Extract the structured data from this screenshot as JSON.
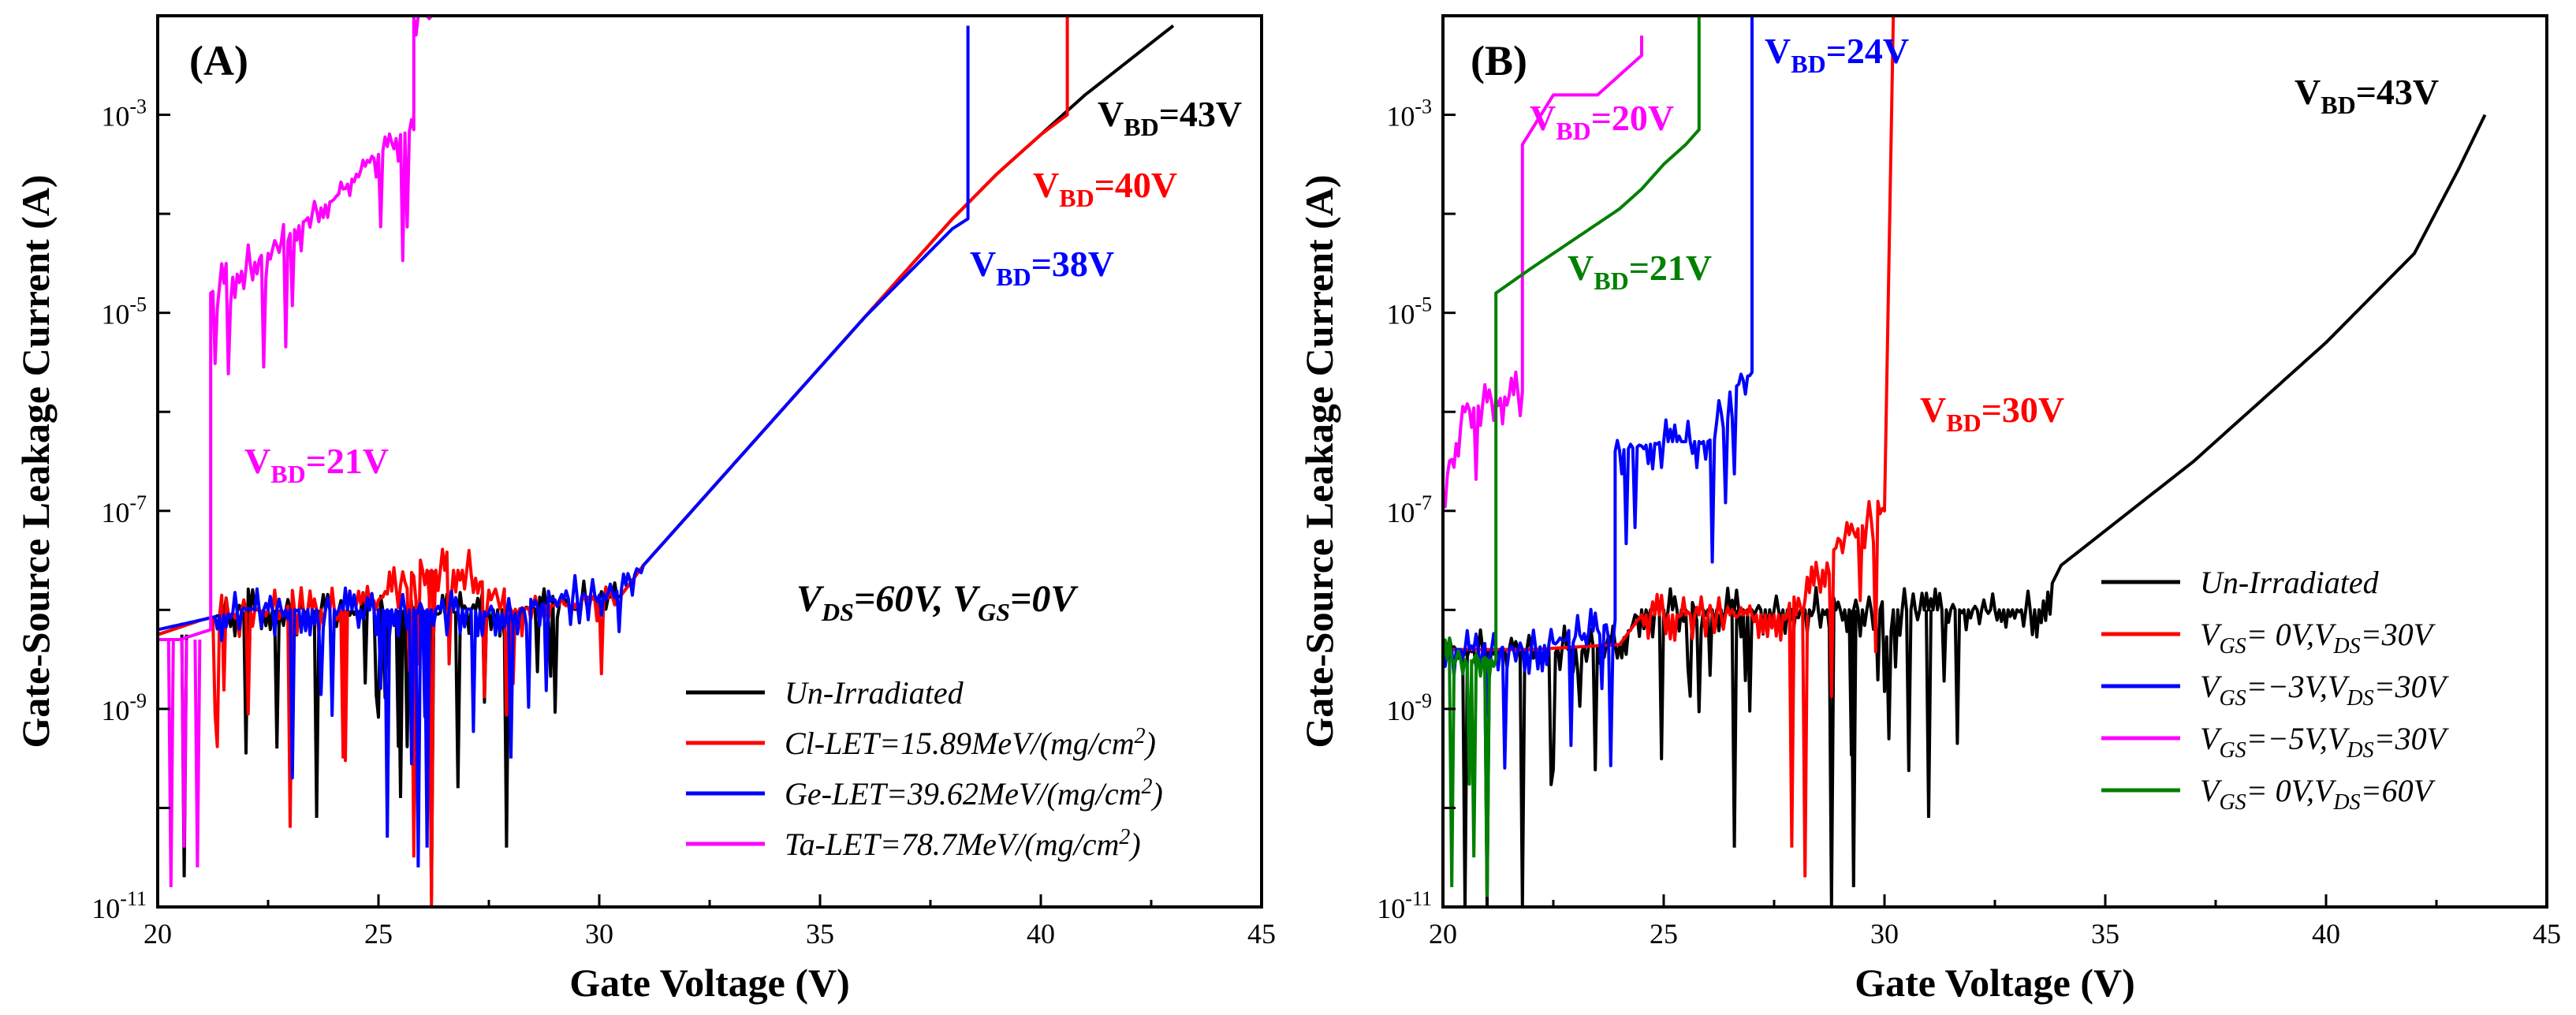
{
  "colors": {
    "black": "#000000",
    "red": "#ff0000",
    "blue": "#0000ff",
    "magenta": "#ff00ff",
    "green": "#008000"
  },
  "chart_data": [
    {
      "type": "line",
      "panel": "(A)",
      "xlabel": "Gate Voltage (V)",
      "ylabel": "Gate-Source Leakage Current (A)",
      "xlim": [
        20,
        45
      ],
      "ylim_log10": [
        -11,
        -2
      ],
      "yscale": "log",
      "xticks": [
        "20",
        "25",
        "30",
        "35",
        "40",
        "45"
      ],
      "yticks": [
        {
          "exp": -11,
          "base": "10",
          "sup": "-11"
        },
        {
          "exp": -9,
          "base": "10",
          "sup": "-9"
        },
        {
          "exp": -7,
          "base": "10",
          "sup": "-7"
        },
        {
          "exp": -5,
          "base": "10",
          "sup": "-5"
        },
        {
          "exp": -3,
          "base": "10",
          "sup": "-3"
        }
      ],
      "condition": {
        "t1": "V",
        "s1": "DS",
        "t2": "=60V, V",
        "s2": "GS",
        "t3": "=0V"
      },
      "series": [
        {
          "name": "Un-Irradiated",
          "color": "#000000",
          "points": [
            [
              20,
              -8.25
            ],
            [
              21,
              -8.1
            ],
            [
              22,
              -8.0
            ],
            [
              23,
              -8.0
            ],
            [
              24,
              -8.0
            ],
            [
              25,
              -8.0
            ],
            [
              26,
              -8.05
            ],
            [
              27,
              -8.0
            ],
            [
              28,
              -8.0
            ],
            [
              29,
              -7.95
            ],
            [
              30,
              -7.9
            ],
            [
              30.5,
              -7.85
            ],
            [
              31,
              -7.55
            ],
            [
              32,
              -7.05
            ],
            [
              33,
              -6.55
            ],
            [
              34,
              -6.05
            ],
            [
              35,
              -5.55
            ],
            [
              36,
              -5.05
            ],
            [
              37,
              -4.55
            ],
            [
              38,
              -4.05
            ],
            [
              39,
              -3.6
            ],
            [
              40,
              -3.2
            ],
            [
              41,
              -2.8
            ],
            [
              42,
              -2.45
            ],
            [
              43,
              -2.1
            ]
          ],
          "noise_range": [
            21.3,
            30.5
          ],
          "dips": [
            [
              20.6,
              -10.7
            ],
            [
              22.7,
              -9.4
            ],
            [
              23.6,
              -10.1
            ],
            [
              25.5,
              -9.9
            ],
            [
              26.8,
              -9.8
            ],
            [
              27.9,
              -10.4
            ],
            [
              26.2,
              -10.9
            ]
          ]
        },
        {
          "name": "Cl-LET=15.89MeV/(mg/cm2)",
          "legend": {
            "text": "Cl-LET=15.89MeV/(mg/cm",
            "sup": "2",
            "close": ")"
          },
          "color": "#ff0000",
          "points": [
            [
              20,
              -8.25
            ],
            [
              21,
              -8.1
            ],
            [
              22,
              -8.0
            ],
            [
              23,
              -8.0
            ],
            [
              24,
              -8.0
            ],
            [
              25,
              -7.9
            ],
            [
              26,
              -7.6
            ],
            [
              27,
              -7.6
            ],
            [
              28,
              -8.0
            ],
            [
              29,
              -7.95
            ],
            [
              30,
              -7.9
            ],
            [
              30.5,
              -7.85
            ],
            [
              31,
              -7.55
            ],
            [
              32,
              -7.05
            ],
            [
              33,
              -6.55
            ],
            [
              34,
              -6.05
            ],
            [
              35,
              -5.55
            ],
            [
              36,
              -5.05
            ],
            [
              37,
              -4.55
            ],
            [
              38,
              -4.05
            ],
            [
              39,
              -3.6
            ],
            [
              40,
              -3.2
            ],
            [
              40.6,
              -3.0
            ],
            [
              40.6,
              -2.0
            ]
          ],
          "noise_range": [
            21.3,
            30.5
          ],
          "dips": [
            [
              23.0,
              -10.2
            ],
            [
              24.2,
              -9.5
            ],
            [
              25.8,
              -10.5
            ],
            [
              26.2,
              -11.0
            ],
            [
              28.0,
              -9.3
            ]
          ],
          "vbd_label": {
            "t": "V",
            "s": "BD",
            "v": "=40V"
          }
        },
        {
          "name": "Ge-LET=39.62MeV/(mg/cm2)",
          "legend": {
            "text": "Ge-LET=39.62MeV/(mg/cm",
            "sup": "2",
            "close": ")"
          },
          "color": "#0000ff",
          "points": [
            [
              20,
              -8.2
            ],
            [
              21,
              -8.1
            ],
            [
              22,
              -8.0
            ],
            [
              23,
              -8.0
            ],
            [
              24,
              -8.0
            ],
            [
              25,
              -8.0
            ],
            [
              26,
              -8.0
            ],
            [
              27,
              -8.0
            ],
            [
              28,
              -8.05
            ],
            [
              29,
              -7.9
            ],
            [
              30,
              -7.85
            ],
            [
              30.5,
              -7.8
            ],
            [
              31,
              -7.55
            ],
            [
              32,
              -7.05
            ],
            [
              33,
              -6.55
            ],
            [
              34,
              -6.05
            ],
            [
              35,
              -5.55
            ],
            [
              36,
              -5.05
            ],
            [
              37,
              -4.6
            ],
            [
              38,
              -4.15
            ],
            [
              38.35,
              -4.05
            ],
            [
              38.35,
              -2.1
            ]
          ],
          "noise_range": [
            21.3,
            31.0
          ],
          "dips": [
            [
              25.2,
              -10.3
            ],
            [
              25.9,
              -10.6
            ],
            [
              26.1,
              -10.4
            ],
            [
              28.0,
              -9.5
            ]
          ],
          "vbd_label": {
            "t": "V",
            "s": "BD",
            "v": "=38V"
          }
        },
        {
          "name": "Ta-LET=78.7MeV/(mg/cm2)",
          "legend": {
            "text": "Ta-LET=78.7MeV/(mg/cm",
            "sup": "2",
            "close": ")"
          },
          "color": "#ff00ff",
          "points": [
            [
              20,
              -8.3
            ],
            [
              20.5,
              -8.3
            ],
            [
              21.2,
              -8.2
            ],
            [
              21.2,
              -4.8
            ],
            [
              21.5,
              -4.7
            ],
            [
              22,
              -4.55
            ],
            [
              22.5,
              -4.4
            ],
            [
              23,
              -4.2
            ],
            [
              23.5,
              -4.0
            ],
            [
              24,
              -3.85
            ],
            [
              24.5,
              -3.6
            ],
            [
              25,
              -3.4
            ],
            [
              25.5,
              -3.2
            ],
            [
              25.8,
              -3.15
            ],
            [
              25.8,
              -2.0
            ],
            [
              26.3,
              -2.0
            ]
          ],
          "noise_range": [
            21.3,
            29.5
          ],
          "dips": [
            [
              20.3,
              -10.8
            ],
            [
              20.6,
              -10.4
            ],
            [
              20.9,
              -10.6
            ]
          ],
          "vbd_label": {
            "t": "V",
            "s": "BD",
            "v": "=21V"
          }
        }
      ],
      "extra_labels": [
        {
          "t": "V",
          "s": "BD",
          "v": "=43V",
          "color": "#000000"
        }
      ]
    },
    {
      "type": "line",
      "panel": "(B)",
      "xlabel": "Gate Voltage (V)",
      "ylabel": "Gate-Source Leakage Current (A)",
      "xlim": [
        20,
        45
      ],
      "ylim_log10": [
        -11,
        -2
      ],
      "yscale": "log",
      "xticks": [
        "20",
        "25",
        "30",
        "35",
        "40",
        "45"
      ],
      "yticks": [
        {
          "exp": -11,
          "base": "10",
          "sup": "-11"
        },
        {
          "exp": -9,
          "base": "10",
          "sup": "-9"
        },
        {
          "exp": -7,
          "base": "10",
          "sup": "-7"
        },
        {
          "exp": -5,
          "base": "10",
          "sup": "-5"
        },
        {
          "exp": -3,
          "base": "10",
          "sup": "-3"
        }
      ],
      "series": [
        {
          "name": "Un-Irradiated",
          "legend": {
            "t1": "Un-Irradiated"
          },
          "color": "#000000",
          "points": [
            [
              20,
              -8.4
            ],
            [
              22,
              -8.4
            ],
            [
              24,
              -8.35
            ],
            [
              24.5,
              -8.0
            ],
            [
              26,
              -8.0
            ],
            [
              28,
              -8.0
            ],
            [
              30,
              -8.0
            ],
            [
              32,
              -8.0
            ],
            [
              33.5,
              -8.0
            ],
            [
              34,
              -7.55
            ],
            [
              35,
              -7.2
            ],
            [
              36,
              -6.85
            ],
            [
              37,
              -6.5
            ],
            [
              38,
              -6.1
            ],
            [
              39,
              -5.7
            ],
            [
              40,
              -5.3
            ],
            [
              41,
              -4.85
            ],
            [
              42,
              -4.4
            ],
            [
              43,
              -3.55
            ],
            [
              43.6,
              -3.0
            ]
          ],
          "noise_range": [
            20.0,
            33.8
          ],
          "dips": [
            [
              20.5,
              -11.0
            ],
            [
              21.0,
              -11.0
            ],
            [
              21.8,
              -11.0
            ],
            [
              26.6,
              -10.4
            ],
            [
              28.8,
              -11.0
            ],
            [
              29.3,
              -10.8
            ],
            [
              31.0,
              -10.1
            ]
          ],
          "vbd_label": {
            "t": "V",
            "s": "BD",
            "v": "=43V"
          }
        },
        {
          "name": "VGS= 0V,VDS=30V",
          "legend": {
            "t1": "V",
            "s1": "GS",
            "t2": "= 0V,V",
            "s2": "DS",
            "t3": "=30V"
          },
          "color": "#ff0000",
          "points": [
            [
              20,
              -8.4
            ],
            [
              22,
              -8.4
            ],
            [
              24,
              -8.35
            ],
            [
              24.5,
              -8.05
            ],
            [
              26,
              -8.05
            ],
            [
              28,
              -8.05
            ],
            [
              29,
              -7.3
            ],
            [
              30,
              -7.0
            ],
            [
              30.2,
              -2.0
            ]
          ],
          "noise_range": [
            24.5,
            30.0
          ],
          "dips": [
            [
              27.9,
              -10.4
            ],
            [
              28.2,
              -10.7
            ]
          ],
          "vbd_label": {
            "t": "V",
            "s": "BD",
            "v": "=30V"
          }
        },
        {
          "name": "VGS=-3V,VDS=30V",
          "legend": {
            "t1": "V",
            "s1": "GS",
            "t2": "=−3V,V",
            "s2": "DS",
            "t3": "=30V"
          },
          "color": "#0000ff",
          "points": [
            [
              20,
              -8.4
            ],
            [
              22,
              -8.4
            ],
            [
              23.5,
              -8.2
            ],
            [
              23.9,
              -8.1
            ],
            [
              23.9,
              -6.4
            ],
            [
              25,
              -6.3
            ],
            [
              26,
              -6.3
            ],
            [
              26.5,
              -5.8
            ],
            [
              27,
              -5.6
            ],
            [
              27,
              -2.0
            ],
            [
              27.1,
              -2.0
            ]
          ],
          "noise_range": [
            20.0,
            27.0
          ],
          "dips": [],
          "vbd_label": {
            "t": "V",
            "s": "BD",
            "v": "=24V"
          }
        },
        {
          "name": "VGS=-5V,VDS=30V",
          "legend": {
            "t1": "V",
            "s1": "GS",
            "t2": "=−5V,V",
            "s2": "DS",
            "t3": "=30V"
          },
          "color": "#ff00ff",
          "points": [
            [
              20,
              -6.8
            ],
            [
              20.5,
              -6.0
            ],
            [
              21,
              -5.9
            ],
            [
              21.8,
              -5.8
            ],
            [
              21.8,
              -3.3
            ],
            [
              22.5,
              -2.8
            ],
            [
              23.5,
              -2.8
            ],
            [
              24,
              -2.6
            ],
            [
              24.5,
              -2.4
            ],
            [
              24.5,
              -2.2
            ]
          ],
          "noise_range": [
            20.0,
            21.8
          ],
          "dips": [],
          "vbd_label": {
            "t": "V",
            "s": "BD",
            "v": "=20V"
          }
        },
        {
          "name": "VGS= 0V,VDS=60V",
          "legend": {
            "t1": "V",
            "s1": "GS",
            "t2": "= 0V,V",
            "s2": "DS",
            "t3": "=60V"
          },
          "color": "#008000",
          "points": [
            [
              20,
              -8.5
            ],
            [
              21.2,
              -8.5
            ],
            [
              21.2,
              -4.8
            ],
            [
              22,
              -4.55
            ],
            [
              22.5,
              -4.4
            ],
            [
              23,
              -4.25
            ],
            [
              23.5,
              -4.1
            ],
            [
              24,
              -3.95
            ],
            [
              24.5,
              -3.75
            ],
            [
              25,
              -3.5
            ],
            [
              25.5,
              -3.3
            ],
            [
              25.8,
              -3.15
            ],
            [
              25.8,
              -2.0
            ],
            [
              26.3,
              -2.0
            ]
          ],
          "noise_range": [
            20.0,
            21.2
          ],
          "dips": [
            [
              20.2,
              -10.8
            ],
            [
              20.7,
              -10.5
            ],
            [
              21.0,
              -10.9
            ]
          ],
          "vbd_label": {
            "t": "V",
            "s": "BD",
            "v": "=21V"
          }
        }
      ]
    }
  ]
}
